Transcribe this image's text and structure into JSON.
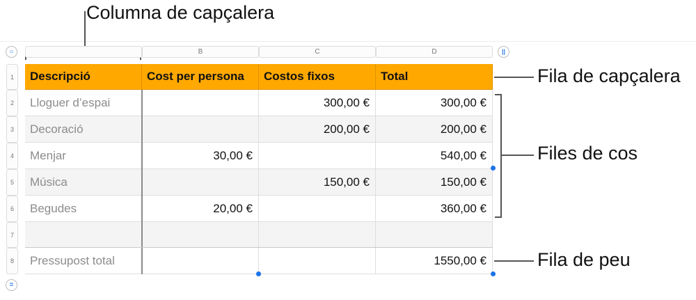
{
  "callouts": {
    "header_column": "Columna de capçalera",
    "header_row": "Fila de capçalera",
    "body_rows": "Files de cos",
    "footer_row": "Fila de peu"
  },
  "controls": {
    "select_table_glyph": "○",
    "freeze_columns_glyph": "||",
    "freeze_rows_glyph": "="
  },
  "column_letters": [
    "",
    "B",
    "C",
    "D"
  ],
  "row_numbers": [
    "1",
    "2",
    "3",
    "4",
    "5",
    "6",
    "7",
    "8"
  ],
  "table": {
    "header": [
      "Descripció",
      "Cost per persona",
      "Costos fixos",
      "Total"
    ],
    "rows": [
      [
        "Lloguer d’espai",
        "",
        "300,00 €",
        "300,00 €"
      ],
      [
        "Decoració",
        "",
        "200,00 €",
        "200,00 €"
      ],
      [
        "Menjar",
        "30,00 €",
        "",
        "540,00 €"
      ],
      [
        "Música",
        "",
        "150,00 €",
        "150,00 €"
      ],
      [
        "Begudes",
        "20,00 €",
        "",
        "360,00 €"
      ],
      [
        "",
        "",
        "",
        ""
      ]
    ],
    "footer": [
      "Pressupost total",
      "",
      "",
      "1550,00 €"
    ]
  },
  "colors": {
    "header_fill": "#ffa800",
    "stripe_fill": "#f4f4f4",
    "selection_blue": "#1a73e8"
  }
}
